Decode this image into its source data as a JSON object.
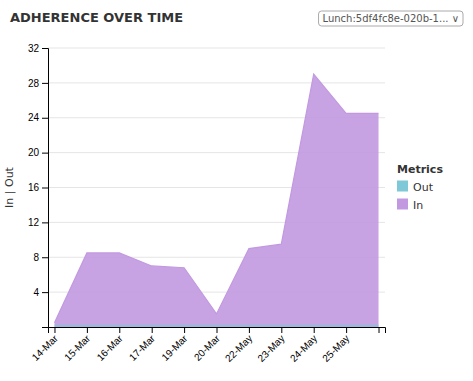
{
  "chart_data": {
    "type": "area",
    "title": "ADHERENCE OVER TIME",
    "annotations": [
      "Lunch:5df4fc8e-020b-1...  ∨"
    ],
    "y_label": "In | Out",
    "categories": [
      "14-Mar",
      "15-Mar",
      "16-Mar",
      "17-Mar",
      "19-Mar",
      "20-Mar",
      "22-May",
      "23-May",
      "24-May",
      "25-May",
      null
    ],
    "series": [
      {
        "name": "Out",
        "color": "#7ec8d8",
        "values": [
          0.3,
          0.3,
          0.3,
          0.3,
          0.3,
          0.3,
          0.3,
          0.3,
          0.3,
          0.3,
          0.3
        ]
      },
      {
        "name": "In",
        "color": "#c299e0",
        "values": [
          0.5,
          8.5,
          8.5,
          7.0,
          6.8,
          1.5,
          9.0,
          9.5,
          29.0,
          24.5,
          24.5
        ]
      }
    ],
    "ylim": [
      0,
      32
    ],
    "yticks": [
      4,
      8,
      12,
      16,
      20,
      24,
      28,
      32
    ],
    "grid": true,
    "legend": "right",
    "legend_title": "Metrics"
  }
}
